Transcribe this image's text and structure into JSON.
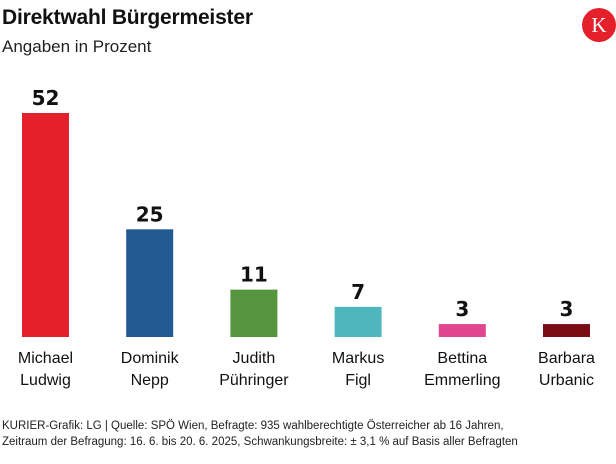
{
  "header": {
    "title": "Direktwahl Bürgermeister",
    "subtitle": "Angaben in Prozent"
  },
  "logo": {
    "letter": "K",
    "color": "#e3202c",
    "icon": "kurier-logo-icon"
  },
  "chart_data": {
    "type": "bar",
    "title": "Direktwahl Bürgermeister",
    "subtitle": "Angaben in Prozent",
    "xlabel": "",
    "ylabel": "",
    "ylim": [
      0,
      52
    ],
    "grid": false,
    "categories": [
      [
        "Michael",
        "Ludwig"
      ],
      [
        "Dominik",
        "Nepp"
      ],
      [
        "Judith",
        "Pühringer"
      ],
      [
        "Markus",
        "Figl"
      ],
      [
        "Bettina",
        "Emmerling"
      ],
      [
        "Barbara",
        "Urbanic"
      ]
    ],
    "values": [
      52,
      25,
      11,
      7,
      3,
      3
    ],
    "colors": [
      "#e3202c",
      "#245a93",
      "#55953d",
      "#50b6bd",
      "#e0468f",
      "#7b0b14"
    ]
  },
  "footer": {
    "line1": "KURIER-Grafik: LG | Quelle: SPÖ Wien, Befragte: 935 wahlberechtigte Österreicher ab 16 Jahren,",
    "line2": "Zeitraum der Befragung: 16. 6. bis 20. 6. 2025, Schwankungsbreite: ± 3,1 % auf Basis aller Befragten"
  }
}
